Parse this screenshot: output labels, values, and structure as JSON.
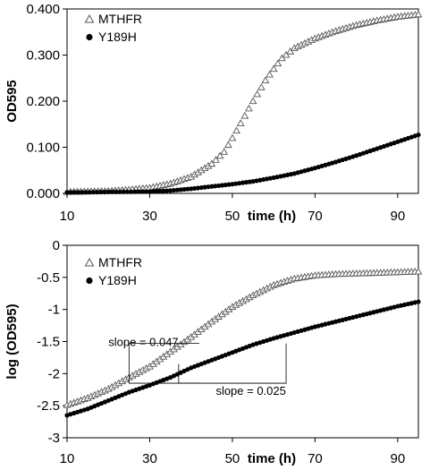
{
  "chart_data": [
    {
      "type": "scatter",
      "title": "",
      "xlabel": "time (h)",
      "ylabel": "OD595",
      "xlim": [
        10,
        95
      ],
      "ylim": [
        0,
        0.4
      ],
      "x_ticks": [
        10,
        30,
        50,
        70,
        90
      ],
      "y_ticks": [
        0.0,
        0.1,
        0.2,
        0.3,
        0.4
      ],
      "y_tick_labels": [
        "0.000",
        "0.100",
        "0.200",
        "0.300",
        "0.400"
      ],
      "grid": false,
      "legend_position": "top-left",
      "series": [
        {
          "name": "MTHFR",
          "marker": "open-triangle",
          "color": "#555555",
          "points": [
            [
              10,
              0.003
            ],
            [
              15,
              0.004
            ],
            [
              20,
              0.005
            ],
            [
              25,
              0.008
            ],
            [
              30,
              0.012
            ],
            [
              35,
              0.021
            ],
            [
              40,
              0.036
            ],
            [
              45,
              0.064
            ],
            [
              48,
              0.09
            ],
            [
              50,
              0.12
            ],
            [
              52,
              0.152
            ],
            [
              55,
              0.2
            ],
            [
              58,
              0.245
            ],
            [
              60,
              0.27
            ],
            [
              62,
              0.293
            ],
            [
              65,
              0.315
            ],
            [
              70,
              0.336
            ],
            [
              75,
              0.352
            ],
            [
              80,
              0.365
            ],
            [
              85,
              0.375
            ],
            [
              90,
              0.383
            ],
            [
              95,
              0.388
            ]
          ]
        },
        {
          "name": "Y189H",
          "marker": "filled-circle",
          "color": "#000000",
          "points": [
            [
              10,
              0.002
            ],
            [
              20,
              0.003
            ],
            [
              30,
              0.004
            ],
            [
              35,
              0.006
            ],
            [
              40,
              0.01
            ],
            [
              45,
              0.015
            ],
            [
              50,
              0.02
            ],
            [
              55,
              0.026
            ],
            [
              60,
              0.034
            ],
            [
              65,
              0.043
            ],
            [
              70,
              0.055
            ],
            [
              75,
              0.068
            ],
            [
              80,
              0.082
            ],
            [
              85,
              0.097
            ],
            [
              90,
              0.112
            ],
            [
              95,
              0.127
            ]
          ]
        }
      ]
    },
    {
      "type": "scatter",
      "title": "",
      "xlabel": "time (h)",
      "ylabel": "log (OD595)",
      "xlim": [
        10,
        95
      ],
      "ylim": [
        -3,
        0
      ],
      "x_ticks": [
        10,
        30,
        50,
        70,
        90
      ],
      "y_ticks": [
        -3,
        -2.5,
        -2,
        -1.5,
        -1,
        -0.5,
        0
      ],
      "y_tick_labels": [
        "-3",
        "-2.5",
        "-2",
        "-1.5",
        "-1",
        "-0.5",
        "0"
      ],
      "grid": false,
      "legend_position": "top-left",
      "annotations": [
        "slope = 0.047",
        "slope = 0.025"
      ],
      "series": [
        {
          "name": "MTHFR",
          "marker": "open-triangle",
          "color": "#555555",
          "points": [
            [
              10,
              -2.49
            ],
            [
              15,
              -2.38
            ],
            [
              20,
              -2.24
            ],
            [
              25,
              -2.06
            ],
            [
              30,
              -1.89
            ],
            [
              35,
              -1.66
            ],
            [
              40,
              -1.43
            ],
            [
              45,
              -1.19
            ],
            [
              50,
              -0.96
            ],
            [
              55,
              -0.78
            ],
            [
              60,
              -0.62
            ],
            [
              65,
              -0.52
            ],
            [
              70,
              -0.47
            ],
            [
              75,
              -0.45
            ],
            [
              80,
              -0.44
            ],
            [
              85,
              -0.43
            ],
            [
              90,
              -0.42
            ],
            [
              95,
              -0.41
            ]
          ]
        },
        {
          "name": "Y189H",
          "marker": "filled-circle",
          "color": "#000000",
          "points": [
            [
              10,
              -2.65
            ],
            [
              15,
              -2.55
            ],
            [
              20,
              -2.42
            ],
            [
              25,
              -2.29
            ],
            [
              30,
              -2.18
            ],
            [
              35,
              -2.06
            ],
            [
              40,
              -1.91
            ],
            [
              45,
              -1.79
            ],
            [
              50,
              -1.67
            ],
            [
              55,
              -1.55
            ],
            [
              60,
              -1.45
            ],
            [
              65,
              -1.36
            ],
            [
              70,
              -1.27
            ],
            [
              75,
              -1.19
            ],
            [
              80,
              -1.11
            ],
            [
              85,
              -1.03
            ],
            [
              90,
              -0.95
            ],
            [
              95,
              -0.88
            ]
          ]
        }
      ]
    }
  ]
}
